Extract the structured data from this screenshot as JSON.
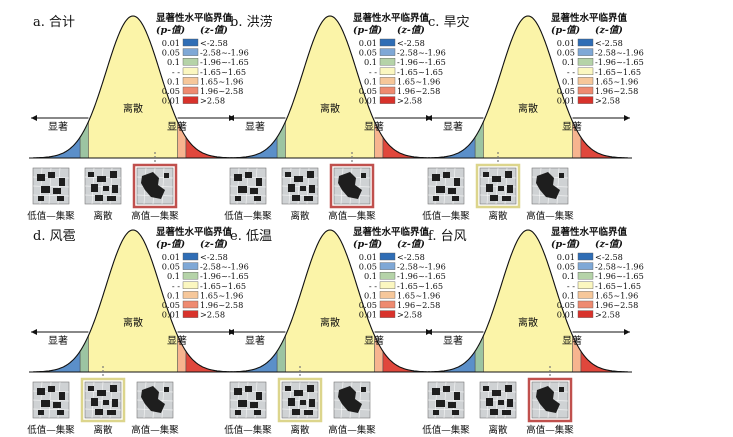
{
  "legend_title_line1": "显著性水平临界值",
  "legend_title_p": "(p-值)",
  "legend_title_z": "(z-值)",
  "legend_rows": [
    {
      "p": "0.01",
      "z": "<-2.58",
      "color": "#2f6db5"
    },
    {
      "p": "0.05",
      "z": "-2.58~-1.96",
      "color": "#7fa8d6"
    },
    {
      "p": "0.1",
      "z": "-1.96~-1.65",
      "color": "#b5d3a8"
    },
    {
      "p": "- -",
      "z": "-1.65~1.65",
      "color": "#fbf7c0"
    },
    {
      "p": "0.1",
      "z": "1.65~1.96",
      "color": "#f6c79a"
    },
    {
      "p": "0.05",
      "z": "1.96~2.58",
      "color": "#ee8a70"
    },
    {
      "p": "0.01",
      "z": ">2.58",
      "color": "#d8322b"
    }
  ],
  "curve_labels": {
    "significant": "显著",
    "random": "离散"
  },
  "thumb_labels": [
    "低值—集聚",
    "离散",
    "高值—集聚"
  ],
  "panels": [
    {
      "title": "a. 合计",
      "highlight": 2
    },
    {
      "title": "b. 洪涝",
      "highlight": 2
    },
    {
      "title": "c. 旱灾",
      "highlight": 1
    },
    {
      "title": "d. 风雹",
      "highlight": 1
    },
    {
      "title": "e. 低温",
      "highlight": 1
    },
    {
      "title": "f. 台风",
      "highlight": 2
    }
  ],
  "colors": {
    "curve_fill": "#fbf4a8",
    "tail_left_dark": "#5b8fc9",
    "tail_left_mid": "#9cc4a2",
    "tail_right_mid": "#f7b48f",
    "tail_right_dark": "#e0473c",
    "highlight_yellow": "#dcd58c",
    "highlight_red": "#c0504d",
    "thumb_gray": "#cfd2d4",
    "thumb_dark": "#1e1e1e"
  }
}
